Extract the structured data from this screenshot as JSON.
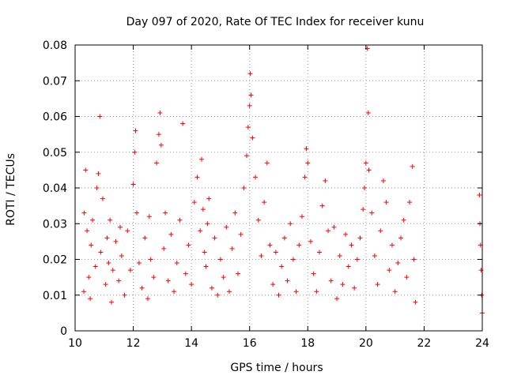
{
  "chart_data": {
    "type": "scatter",
    "title": "Day 097 of 2020, Rate Of TEC Index for receiver kunu",
    "xlabel": "GPS time / hours",
    "ylabel": "ROTI / TECUs",
    "xlim": [
      10,
      24
    ],
    "ylim": [
      0,
      0.08
    ],
    "x_ticks": [
      "10",
      "12",
      "14",
      "16",
      "18",
      "20",
      "22",
      "24"
    ],
    "y_ticks": [
      "0",
      "0.01",
      "0.02",
      "0.03",
      "0.04",
      "0.05",
      "0.06",
      "0.07",
      "0.08"
    ],
    "grid": true,
    "marker": "+",
    "color": "#ff0000",
    "series": [
      {
        "x": [
          10.3,
          10.31,
          10.36,
          10.41,
          10.47,
          10.52,
          10.55,
          10.6,
          10.7,
          10.75,
          10.8,
          10.85,
          10.88,
          10.95,
          11.05,
          11.1,
          11.15,
          11.2,
          11.25,
          11.3,
          11.4,
          11.5,
          11.55,
          11.6,
          11.7,
          11.8,
          11.9,
          12.0,
          12.05,
          12.08,
          12.12,
          12.2,
          12.3,
          12.4,
          12.5,
          12.55,
          12.6,
          12.7,
          12.8,
          12.88,
          12.92,
          12.96,
          13.05,
          13.1,
          13.2,
          13.3,
          13.4,
          13.5,
          13.6,
          13.7,
          13.8,
          13.9,
          14.0,
          14.1,
          14.2,
          14.3,
          14.35,
          14.4,
          14.45,
          14.5,
          14.55,
          14.6,
          14.7,
          14.8,
          14.9,
          15.0,
          15.1,
          15.2,
          15.3,
          15.4,
          15.5,
          15.6,
          15.7,
          15.8,
          15.9,
          15.95,
          16.0,
          16.02,
          16.05,
          16.1,
          16.2,
          16.3,
          16.4,
          16.5,
          16.6,
          16.7,
          16.8,
          16.9,
          17.0,
          17.1,
          17.2,
          17.3,
          17.4,
          17.5,
          17.6,
          17.7,
          17.8,
          17.9,
          17.95,
          18.0,
          18.1,
          18.2,
          18.3,
          18.4,
          18.5,
          18.6,
          18.7,
          18.8,
          18.9,
          19.0,
          19.1,
          19.2,
          19.3,
          19.4,
          19.5,
          19.6,
          19.7,
          19.8,
          19.9,
          19.95,
          20.0,
          20.05,
          20.08,
          20.1,
          20.2,
          20.3,
          20.4,
          20.5,
          20.6,
          20.7,
          20.8,
          20.9,
          21.0,
          21.1,
          21.2,
          21.3,
          21.4,
          21.5,
          21.6,
          21.65,
          21.7,
          23.9,
          23.92,
          23.94,
          23.96,
          23.98,
          24.0
        ],
        "y": [
          0.011,
          0.033,
          0.045,
          0.028,
          0.015,
          0.009,
          0.024,
          0.031,
          0.018,
          0.04,
          0.044,
          0.06,
          0.022,
          0.037,
          0.013,
          0.026,
          0.019,
          0.031,
          0.008,
          0.017,
          0.025,
          0.014,
          0.029,
          0.021,
          0.01,
          0.028,
          0.017,
          0.041,
          0.05,
          0.056,
          0.033,
          0.019,
          0.012,
          0.026,
          0.009,
          0.032,
          0.02,
          0.015,
          0.047,
          0.055,
          0.061,
          0.052,
          0.023,
          0.033,
          0.014,
          0.027,
          0.011,
          0.019,
          0.031,
          0.058,
          0.016,
          0.024,
          0.013,
          0.036,
          0.043,
          0.028,
          0.048,
          0.034,
          0.022,
          0.018,
          0.03,
          0.037,
          0.012,
          0.026,
          0.01,
          0.02,
          0.015,
          0.029,
          0.011,
          0.023,
          0.033,
          0.016,
          0.027,
          0.04,
          0.049,
          0.057,
          0.063,
          0.072,
          0.066,
          0.054,
          0.043,
          0.031,
          0.021,
          0.036,
          0.047,
          0.024,
          0.013,
          0.022,
          0.01,
          0.018,
          0.026,
          0.014,
          0.03,
          0.02,
          0.011,
          0.024,
          0.032,
          0.043,
          0.051,
          0.047,
          0.025,
          0.016,
          0.011,
          0.022,
          0.035,
          0.042,
          0.028,
          0.014,
          0.029,
          0.009,
          0.021,
          0.013,
          0.027,
          0.018,
          0.024,
          0.012,
          0.02,
          0.026,
          0.034,
          0.04,
          0.047,
          0.079,
          0.061,
          0.045,
          0.033,
          0.021,
          0.013,
          0.028,
          0.042,
          0.036,
          0.017,
          0.024,
          0.011,
          0.019,
          0.026,
          0.031,
          0.015,
          0.036,
          0.046,
          0.02,
          0.008,
          0.038,
          0.03,
          0.024,
          0.017,
          0.01,
          0.005
        ]
      }
    ]
  }
}
